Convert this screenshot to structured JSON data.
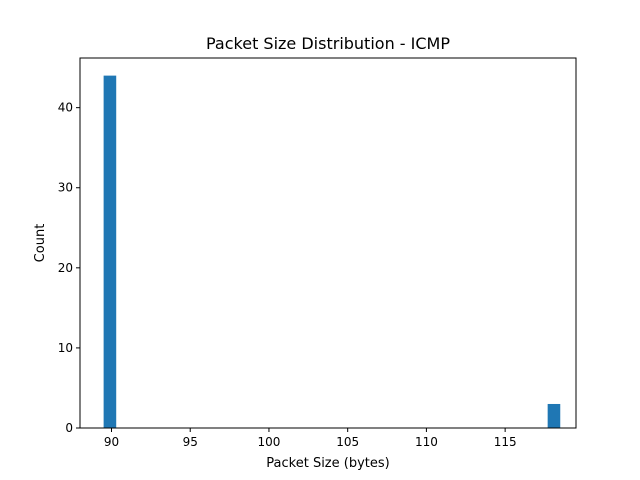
{
  "chart_data": {
    "type": "bar",
    "title": "Packet Size Distribution - ICMP",
    "xlabel": "Packet Size (bytes)",
    "ylabel": "Count",
    "xlim": [
      88.0,
      119.5
    ],
    "ylim": [
      0,
      46.2
    ],
    "x_ticks": [
      "90",
      "95",
      "100",
      "105",
      "110",
      "115"
    ],
    "y_ticks": [
      "0",
      "10",
      "20",
      "30",
      "40"
    ],
    "grid": false,
    "legend": "none",
    "bar_color": "#1f77b4",
    "bins": [
      {
        "start": 89.5,
        "end": 90.3,
        "count": 44
      },
      {
        "start": 117.7,
        "end": 118.5,
        "count": 3
      }
    ]
  }
}
